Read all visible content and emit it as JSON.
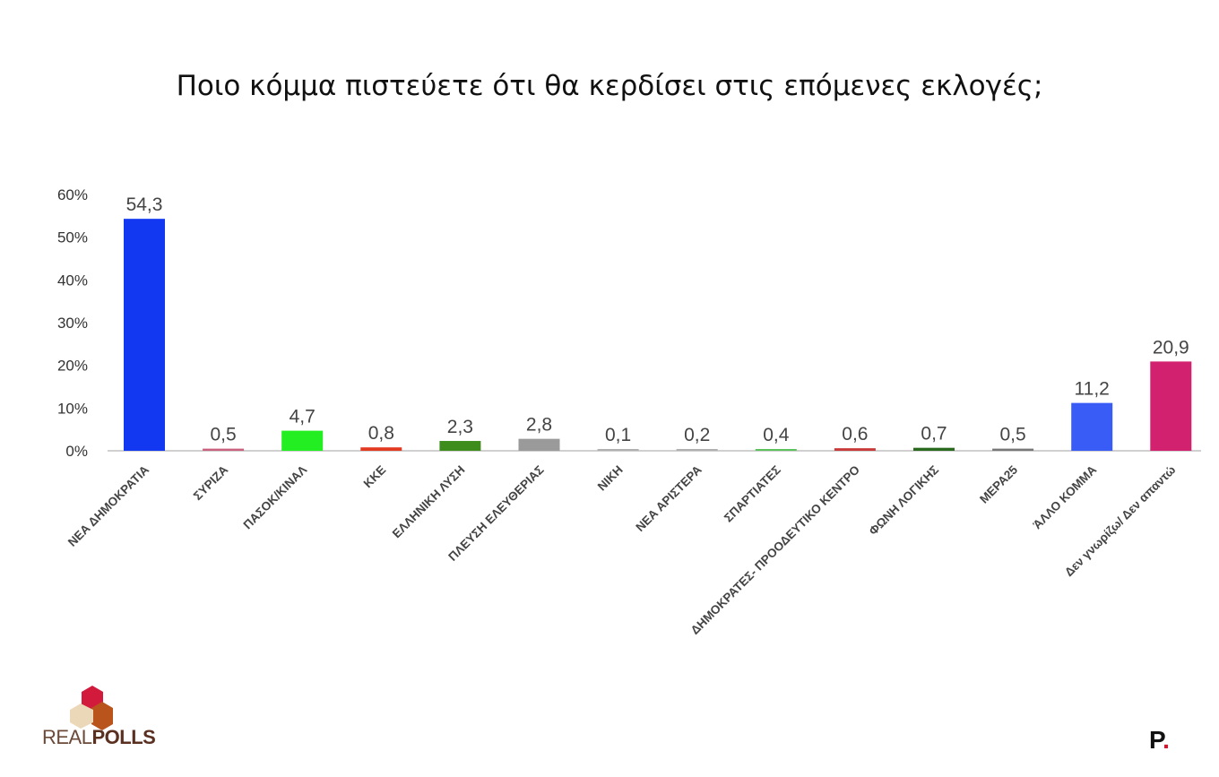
{
  "chart_data": {
    "type": "bar",
    "title": "Ποιο κόμμα πιστεύετε ότι θα κερδίσει στις επόμενες εκλογές;",
    "categories": [
      "ΝΕΑ ΔΗΜΟΚΡΑΤΙΑ",
      "ΣΥΡΙΖΑ",
      "ΠΑΣΟΚ/ΚΙΝΑΛ",
      "ΚΚΕ",
      "ΕΛΛΗΝΙΚΗ ΛΥΣΗ",
      "ΠΛΕΥΣΗ ΕΛΕΥΘΕΡΙΑΣ",
      "ΝΙΚΗ",
      "ΝΕΑ ΑΡΙΣΤΕΡΑ",
      "ΣΠΑΡΤΙΑΤΕΣ",
      "ΔΗΜΟΚΡΑΤΕΣ-  ΠΡΟΟΔΕΥΤΙΚΟ ΚΕΝΤΡΟ",
      "ΦΩΝΗ ΛΟΓΙΚΗΣ",
      "ΜΕΡΑ25",
      "ΆΛΛΟ ΚΟΜΜΑ",
      "Δεν γνωρίζω/ Δεν απαντώ"
    ],
    "values": [
      54.3,
      0.5,
      4.7,
      0.8,
      2.3,
      2.8,
      0.1,
      0.2,
      0.4,
      0.6,
      0.7,
      0.5,
      11.2,
      20.9
    ],
    "data_labels": [
      "54,3",
      "0,5",
      "4,7",
      "0,8",
      "2,3",
      "2,8",
      "0,1",
      "0,2",
      "0,4",
      "0,6",
      "0,7",
      "0,5",
      "11,2",
      "20,9"
    ],
    "colors": [
      "#1238f2",
      "#c9607e",
      "#22ee22",
      "#e33a22",
      "#3d8c1c",
      "#9a9a9a",
      "#b0b0b0",
      "#b0b0b0",
      "#5cc25c",
      "#c83a3a",
      "#2a6a1e",
      "#777777",
      "#3a5cf6",
      "#d2216e"
    ],
    "ylim": [
      0,
      60
    ],
    "yticks": [
      "0%",
      "10%",
      "20%",
      "30%",
      "40%",
      "50%",
      "60%"
    ],
    "xlabel": "",
    "ylabel": "",
    "grid": false,
    "legend": "none"
  },
  "logo": {
    "name": "REALPOLLS",
    "part1": "REAL",
    "part2": "POLLS"
  },
  "publisher_mark": {
    "letter": "P",
    "dot": "."
  }
}
